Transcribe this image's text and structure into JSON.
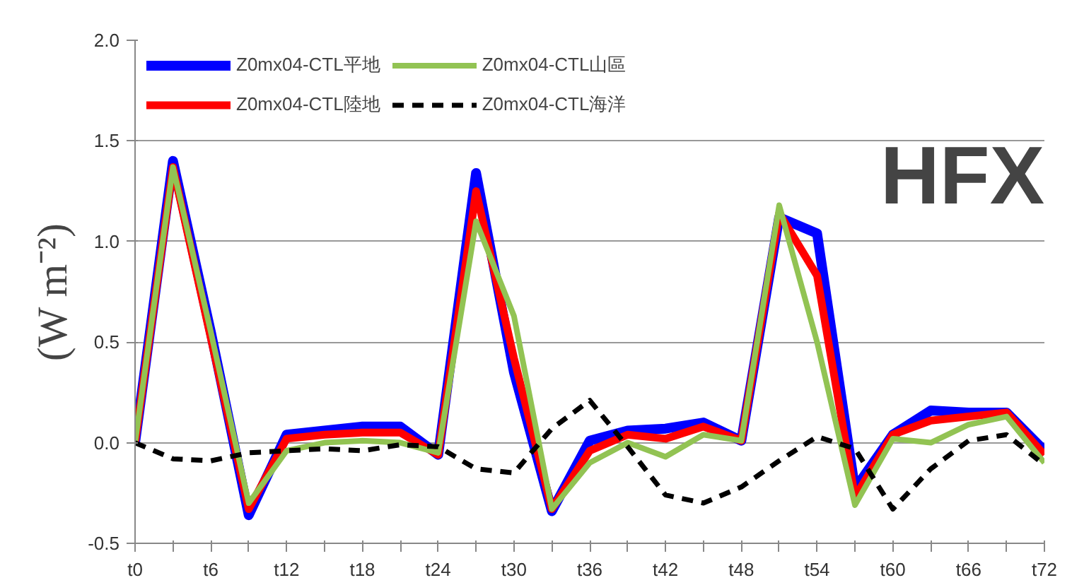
{
  "chart_data": {
    "type": "line",
    "ylabel": "(W m⁻²)",
    "annotations": [
      "HFX"
    ],
    "categories": [
      "t0",
      null,
      "t6",
      null,
      "t12",
      null,
      "t18",
      null,
      "t24",
      null,
      "t30",
      null,
      "t36",
      null,
      "t42",
      null,
      "t48",
      null,
      "t54",
      null,
      "t60",
      null,
      "t66",
      null,
      "t72"
    ],
    "series": [
      {
        "name": "Z0mx04-CTL平地",
        "color": "#0000ff",
        "values": [
          0,
          1.4,
          0.55,
          -0.36,
          0.04,
          0.06,
          0.08,
          0.08,
          -0.06,
          1.34,
          0.35,
          -0.34,
          0.01,
          0.06,
          0.07,
          0.1,
          0.01,
          1.12,
          1.04,
          -0.23,
          0.04,
          0.16,
          0.15,
          0.15,
          -0.04
        ]
      },
      {
        "name": "Z0mx04-CTL陸地",
        "color": "#ff0000",
        "values": [
          0,
          1.37,
          0.52,
          -0.33,
          0.02,
          0.04,
          0.05,
          0.05,
          -0.06,
          1.25,
          0.42,
          -0.33,
          -0.04,
          0.04,
          0.02,
          0.08,
          0.01,
          1.14,
          0.83,
          -0.27,
          0.04,
          0.11,
          0.13,
          0.15,
          -0.06
        ]
      },
      {
        "name": "Z0mx04-CTL山區",
        "color": "#92c353",
        "values": [
          0,
          1.37,
          0.55,
          -0.3,
          -0.04,
          0.0,
          0.01,
          0.0,
          -0.05,
          1.1,
          0.63,
          -0.33,
          -0.1,
          0.0,
          -0.07,
          0.04,
          0.01,
          1.18,
          0.5,
          -0.31,
          0.02,
          0.0,
          0.09,
          0.13,
          -0.1
        ]
      },
      {
        "name": "Z0mx04-CTL海洋",
        "color": "#000000",
        "line_style": "dashed",
        "values": [
          0,
          -0.08,
          -0.09,
          -0.05,
          -0.04,
          -0.03,
          -0.04,
          -0.01,
          -0.02,
          -0.13,
          -0.15,
          0.07,
          0.21,
          -0.02,
          -0.26,
          -0.3,
          -0.22,
          -0.09,
          0.03,
          -0.03,
          -0.33,
          -0.13,
          0.01,
          0.04,
          -0.11
        ]
      }
    ],
    "ylim": [
      -0.5,
      2.0
    ],
    "yticks": [
      {
        "value": -0.5,
        "label": "-0.5"
      },
      {
        "value": 0,
        "label": "0.0"
      },
      {
        "value": 0.5,
        "label": "0.5"
      },
      {
        "value": 1.0,
        "label": "1.0"
      },
      {
        "value": 1.5,
        "label": "1.5"
      },
      {
        "value": 2.0,
        "label": "2.0"
      }
    ],
    "grid": "y",
    "legend": "top left",
    "marker": "none",
    "line_style": "solid"
  }
}
